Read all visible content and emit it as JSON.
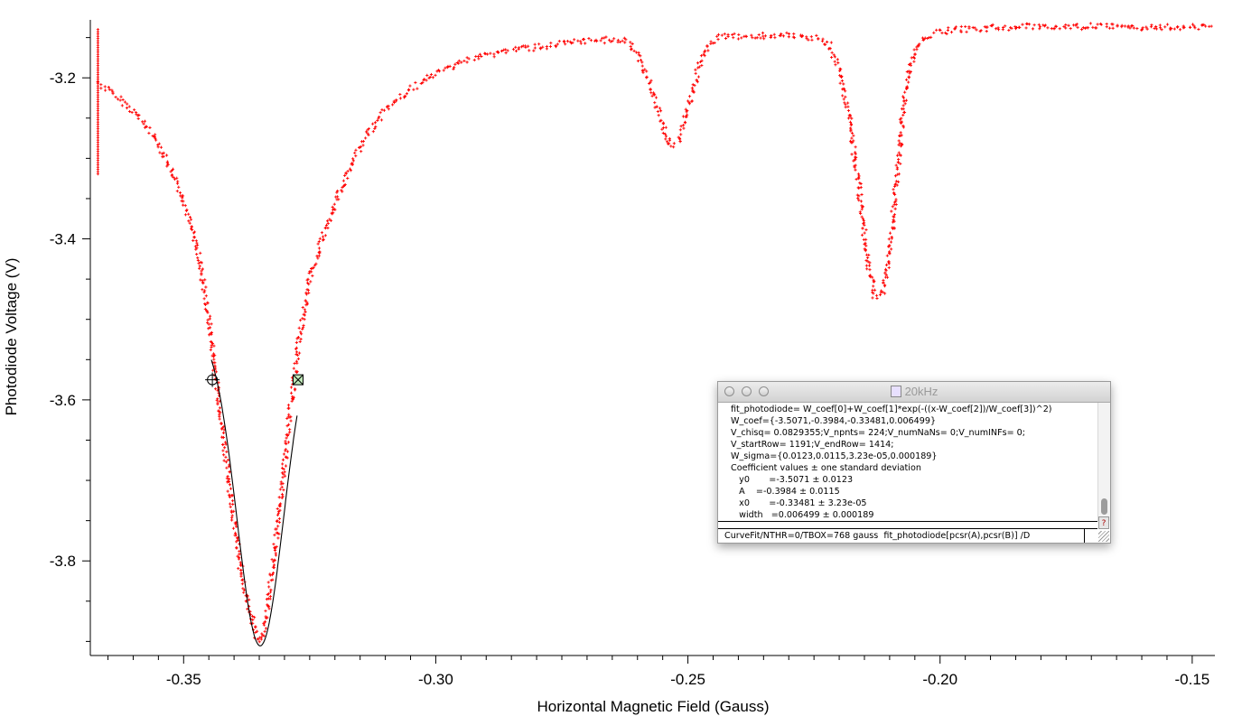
{
  "chart_data": {
    "type": "scatter",
    "xlabel": "Horizontal Magnetic Field (Gauss)",
    "ylabel": "Photodiode Voltage (V)",
    "xlim": [
      -0.3685,
      -0.1455
    ],
    "ylim": [
      -3.9175,
      -3.128
    ],
    "xticks": [
      -0.35,
      -0.3,
      -0.25,
      -0.2,
      -0.15
    ],
    "xtick_labels": [
      "-0.35",
      "-0.30",
      "-0.25",
      "-0.20",
      "-0.15"
    ],
    "yticks": [
      -3.2,
      -3.4,
      -3.6,
      -3.8
    ],
    "ytick_labels": [
      "-3.2",
      "-3.4",
      "-3.6",
      "-3.8"
    ],
    "series": [
      {
        "kind": "data",
        "color": "#ff0000",
        "marker": "plus",
        "x": [
          -0.367,
          -0.365,
          -0.36,
          -0.355,
          -0.35,
          -0.347,
          -0.345,
          -0.343,
          -0.341,
          -0.339,
          -0.337,
          -0.3355,
          -0.3348,
          -0.334,
          -0.333,
          -0.331,
          -0.329,
          -0.327,
          -0.325,
          -0.322,
          -0.319,
          -0.316,
          -0.313,
          -0.31,
          -0.305,
          -0.3,
          -0.295,
          -0.29,
          -0.285,
          -0.28,
          -0.275,
          -0.27,
          -0.265,
          -0.262,
          -0.26,
          -0.258,
          -0.256,
          -0.254,
          -0.2535,
          -0.252,
          -0.25,
          -0.248,
          -0.246,
          -0.244,
          -0.24,
          -0.235,
          -0.23,
          -0.225,
          -0.222,
          -0.22,
          -0.218,
          -0.216,
          -0.2145,
          -0.213,
          -0.2115,
          -0.21,
          -0.2085,
          -0.207,
          -0.205,
          -0.203,
          -0.2,
          -0.195,
          -0.19,
          -0.185,
          -0.18,
          -0.175,
          -0.17,
          -0.165,
          -0.16,
          -0.155,
          -0.15,
          -0.146
        ],
        "y": [
          -3.205,
          -3.215,
          -3.24,
          -3.28,
          -3.35,
          -3.42,
          -3.5,
          -3.6,
          -3.7,
          -3.8,
          -3.86,
          -3.895,
          -3.9,
          -3.89,
          -3.84,
          -3.74,
          -3.62,
          -3.52,
          -3.45,
          -3.39,
          -3.34,
          -3.3,
          -3.265,
          -3.24,
          -3.215,
          -3.195,
          -3.18,
          -3.172,
          -3.165,
          -3.162,
          -3.158,
          -3.155,
          -3.152,
          -3.155,
          -3.17,
          -3.2,
          -3.24,
          -3.275,
          -3.285,
          -3.28,
          -3.24,
          -3.19,
          -3.16,
          -3.15,
          -3.148,
          -3.148,
          -3.148,
          -3.15,
          -3.16,
          -3.19,
          -3.25,
          -3.34,
          -3.42,
          -3.47,
          -3.47,
          -3.42,
          -3.32,
          -3.22,
          -3.165,
          -3.15,
          -3.142,
          -3.14,
          -3.138,
          -3.137,
          -3.136,
          -3.136,
          -3.136,
          -3.137,
          -3.138,
          -3.137,
          -3.136,
          -3.136
        ]
      },
      {
        "kind": "fit",
        "color": "#000000",
        "function": "gauss",
        "y0": -3.5071,
        "A": -0.3984,
        "x0": -0.33481,
        "width": 0.006499,
        "x_range": [
          -0.3445,
          -0.3275
        ]
      }
    ],
    "cursors": [
      {
        "name": "A",
        "shape": "circle-cross",
        "x": -0.3443,
        "y": -3.575
      },
      {
        "name": "B",
        "shape": "square-cross",
        "x": -0.3273,
        "y": -3.575
      }
    ],
    "grid": false
  },
  "window": {
    "title": "20kHz",
    "history_lines": [
      "fit_photodiode= W_coef[0]+W_coef[1]*exp(-((x-W_coef[2])/W_coef[3])^2)",
      "W_coef={-3.5071,-0.3984,-0.33481,0.006499}",
      "V_chisq= 0.0829355;V_npnts= 224;V_numNaNs= 0;V_numINFs= 0;",
      "V_startRow= 1191;V_endRow= 1414;",
      "W_sigma={0.0123,0.0115,3.23e-05,0.000189}",
      "Coefficient values ± one standard deviation",
      "   y0       =-3.5071 ± 0.0123",
      "   A    =-0.3984 ± 0.0115",
      "   x0       =-0.33481 ± 3.23e-05",
      "   width   =0.006499 ± 0.000189"
    ],
    "command": "CurveFit/NTHR=0/TBOX=768 gauss  fit_photodiode[pcsr(A),pcsr(B)] /D",
    "help_label": "?"
  }
}
